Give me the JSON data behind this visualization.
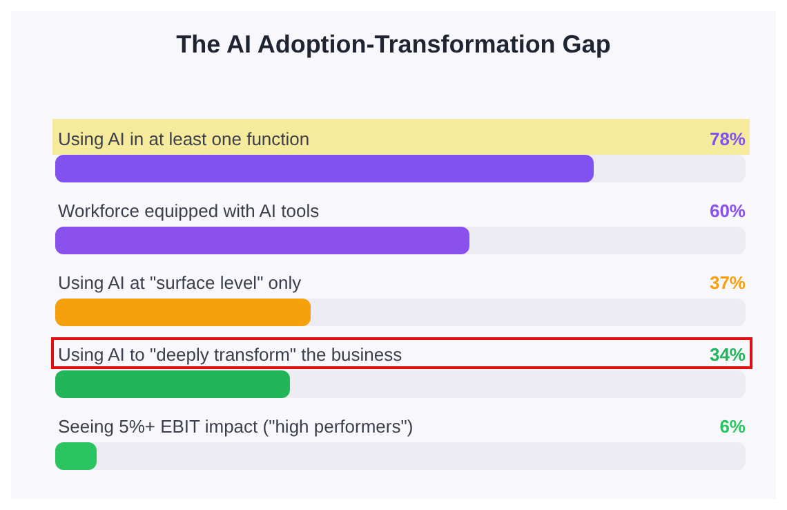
{
  "chart_data": {
    "type": "bar",
    "orientation": "horizontal",
    "title": "The AI Adoption-Transformation Gap",
    "categories": [
      "Using AI in at least one function",
      "Workforce equipped with AI tools",
      "Using AI at \"surface level\" only",
      "Using AI to \"deeply transform\" the business",
      "Seeing 5%+ EBIT impact (\"high performers\")"
    ],
    "values": [
      78,
      60,
      37,
      34,
      6
    ],
    "value_labels": [
      "78%",
      "60%",
      "37%",
      "34%",
      "6%"
    ],
    "colors": [
      "#8152f0",
      "#8a50ec",
      "#f5a00c",
      "#22b55a",
      "#2ac560"
    ],
    "xlim": [
      0,
      100
    ],
    "tick_labels": false
  }
}
